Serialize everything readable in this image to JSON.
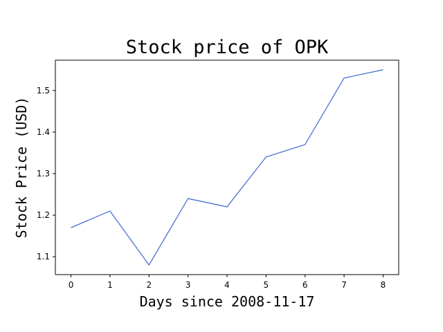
{
  "chart_data": {
    "type": "line",
    "title": "Stock price of OPK",
    "xlabel": "Days since 2008-11-17",
    "ylabel": "Stock Price (USD)",
    "x": [
      0,
      1,
      2,
      3,
      4,
      5,
      6,
      7,
      8
    ],
    "x_ticks": [
      "0",
      "1",
      "2",
      "3",
      "4",
      "5",
      "6",
      "7",
      "8"
    ],
    "y_ticks": [
      "1.1",
      "1.2",
      "1.3",
      "1.4",
      "1.5"
    ],
    "xlim": [
      -0.4,
      8.4
    ],
    "ylim": [
      1.057,
      1.573
    ],
    "grid": false,
    "series": [
      {
        "color": "#4a72d0",
        "values": [
          1.17,
          1.21,
          1.08,
          1.24,
          1.22,
          1.34,
          1.37,
          1.53,
          1.55
        ]
      }
    ]
  }
}
